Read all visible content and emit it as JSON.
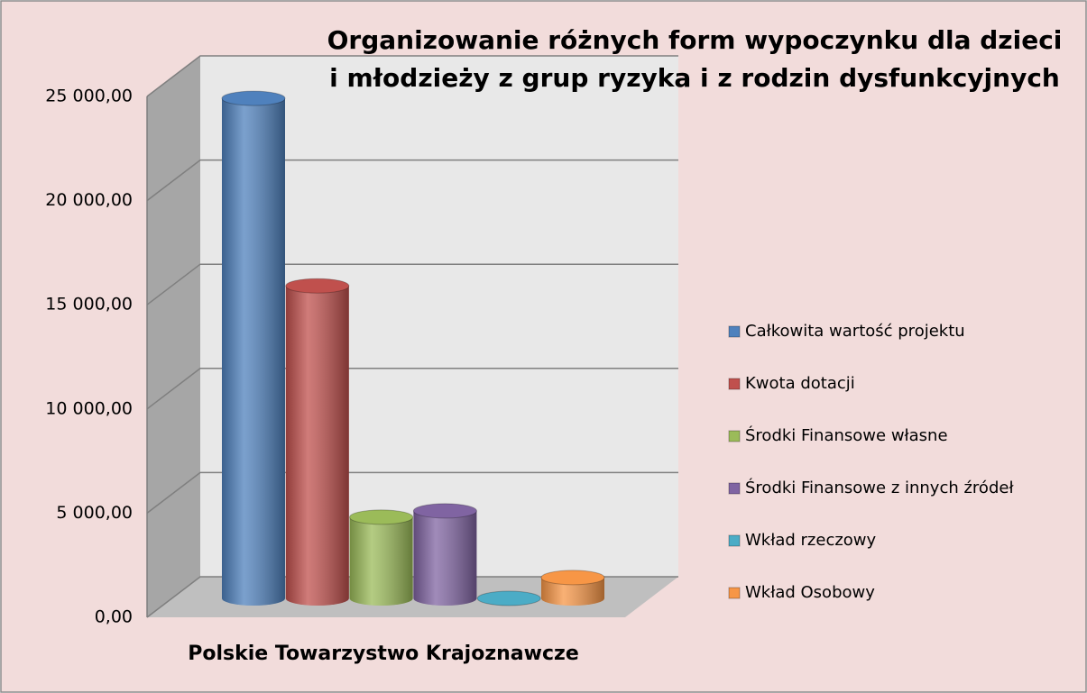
{
  "chart_data": {
    "type": "bar",
    "title": [
      "Organizowanie różnych form wypoczynku dla dzieci",
      "i młodzieży z grup ryzyka i z rodzin dysfunkcyjnych"
    ],
    "categories": [
      "Polskie Towarzystwo Krajoznawcze"
    ],
    "series": [
      {
        "name": "Całkowita wartość projektu",
        "color": "#4f81bd",
        "values": [
          24000
        ]
      },
      {
        "name": "Kwota dotacji",
        "color": "#c0504d",
        "values": [
          15000
        ]
      },
      {
        "name": "Środki  Finansowe własne",
        "color": "#9bbb59",
        "values": [
          3900
        ]
      },
      {
        "name": "Środki Finansowe z innych źródeł",
        "color": "#8064a2",
        "values": [
          4200
        ]
      },
      {
        "name": "Wkład rzeczowy",
        "color": "#4bacc6",
        "values": [
          0
        ]
      },
      {
        "name": "Wkład Osobowy",
        "color": "#f79646",
        "values": [
          1000
        ]
      }
    ],
    "ylim": [
      0,
      25000
    ],
    "yticks": [
      {
        "value": 0,
        "label": "0,00"
      },
      {
        "value": 5000,
        "label": "5 000,00"
      },
      {
        "value": 10000,
        "label": "10 000,00"
      },
      {
        "value": 15000,
        "label": "15 000,00"
      },
      {
        "value": 20000,
        "label": "20 000,00"
      },
      {
        "value": 25000,
        "label": "25 000,00"
      }
    ],
    "grid": true,
    "legend": "right"
  }
}
